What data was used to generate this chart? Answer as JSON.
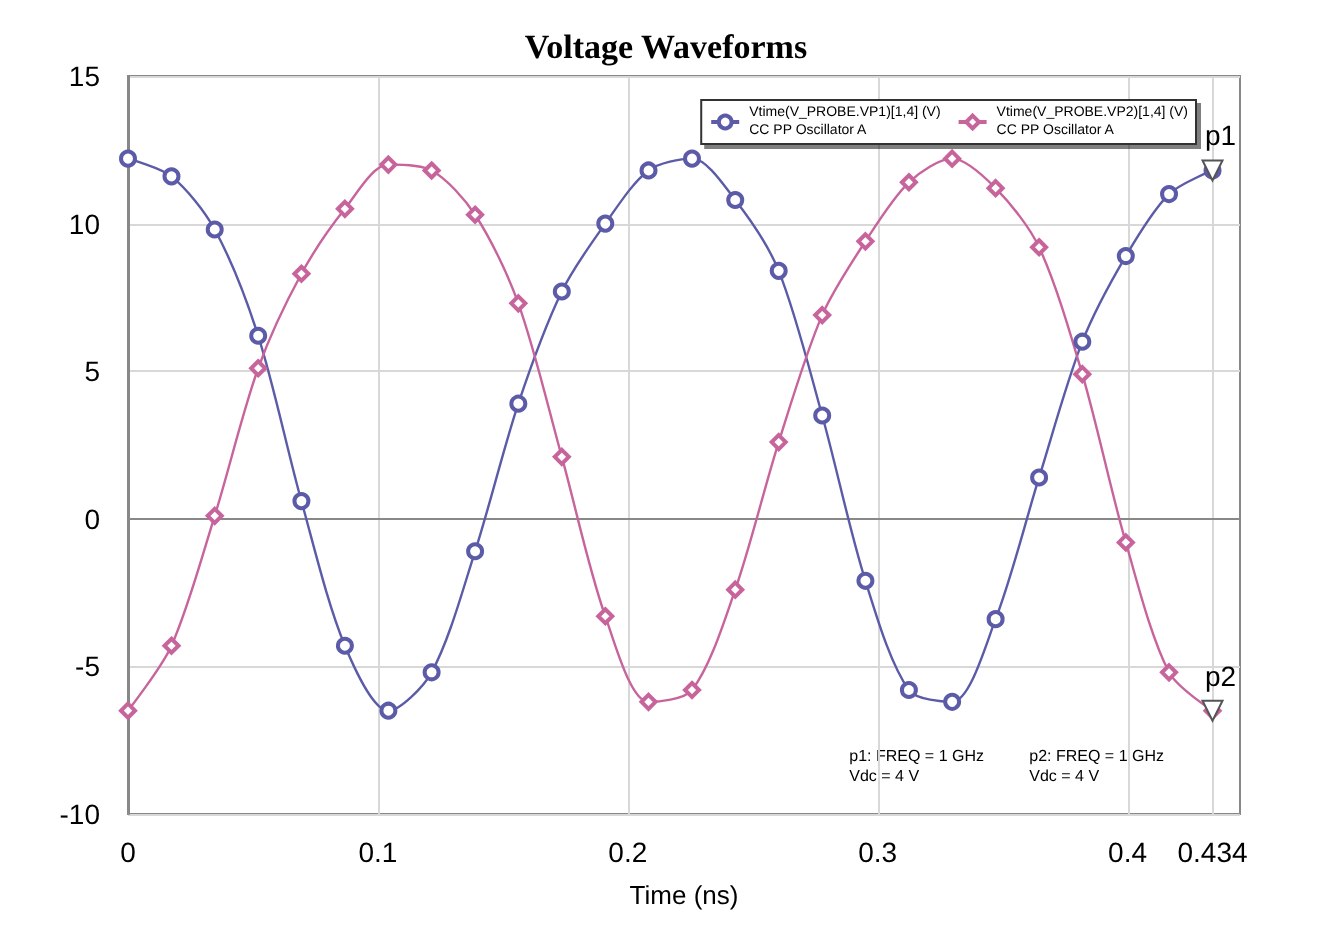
{
  "chart_data": {
    "type": "line",
    "title": "Voltage Waveforms",
    "xlabel": "Time (ns)",
    "x": [
      0,
      0.0174,
      0.0347,
      0.0521,
      0.0694,
      0.0868,
      0.1042,
      0.1215,
      0.1389,
      0.1562,
      0.1736,
      0.191,
      0.2083,
      0.2257,
      0.243,
      0.2604,
      0.2778,
      0.2951,
      0.3125,
      0.3298,
      0.3472,
      0.3646,
      0.3819,
      0.3993,
      0.4166,
      0.434
    ],
    "series": [
      {
        "name": "Vtime(V_PROBE.VP1)[1,4] (V)\nCC PP Oscillator A",
        "color": "#5b5ba8",
        "marker": "circle",
        "values": [
          12.2,
          11.6,
          9.8,
          6.2,
          0.6,
          -4.3,
          -6.5,
          -5.2,
          -1.1,
          3.9,
          7.7,
          10.0,
          11.8,
          12.2,
          10.8,
          8.4,
          3.5,
          -2.1,
          -5.8,
          -6.2,
          -3.4,
          1.4,
          6.0,
          8.9,
          11.0,
          11.8
        ]
      },
      {
        "name": "Vtime(V_PROBE.VP2)[1,4] (V)\nCC PP Oscillator A",
        "color": "#c8649c",
        "marker": "diamond",
        "values": [
          -6.5,
          -4.3,
          0.1,
          5.1,
          8.3,
          10.5,
          12.0,
          11.8,
          10.3,
          7.3,
          2.1,
          -3.3,
          -6.2,
          -5.8,
          -2.4,
          2.6,
          6.9,
          9.4,
          11.4,
          12.2,
          11.2,
          9.2,
          4.9,
          -0.8,
          -5.2,
          -6.5
        ]
      }
    ],
    "xlim": [
      0,
      0.445
    ],
    "xticks": [
      0,
      0.1,
      0.2,
      0.3,
      0.4,
      0.434
    ],
    "ylim": [
      -10,
      15
    ],
    "yticks": [
      -10,
      -5,
      0,
      5,
      10,
      15
    ],
    "grid": true,
    "legend": "top right",
    "line_style": "solid",
    "annotations": [
      {
        "text": "p1",
        "x": 0.434,
        "y": 11.8
      },
      {
        "text": "p2",
        "x": 0.434,
        "y": -6.5
      },
      "p1: FREQ = 1 GHz\nVdc = 4 V",
      "p2: FREQ = 1 GHz\nVdc = 4 V"
    ]
  }
}
